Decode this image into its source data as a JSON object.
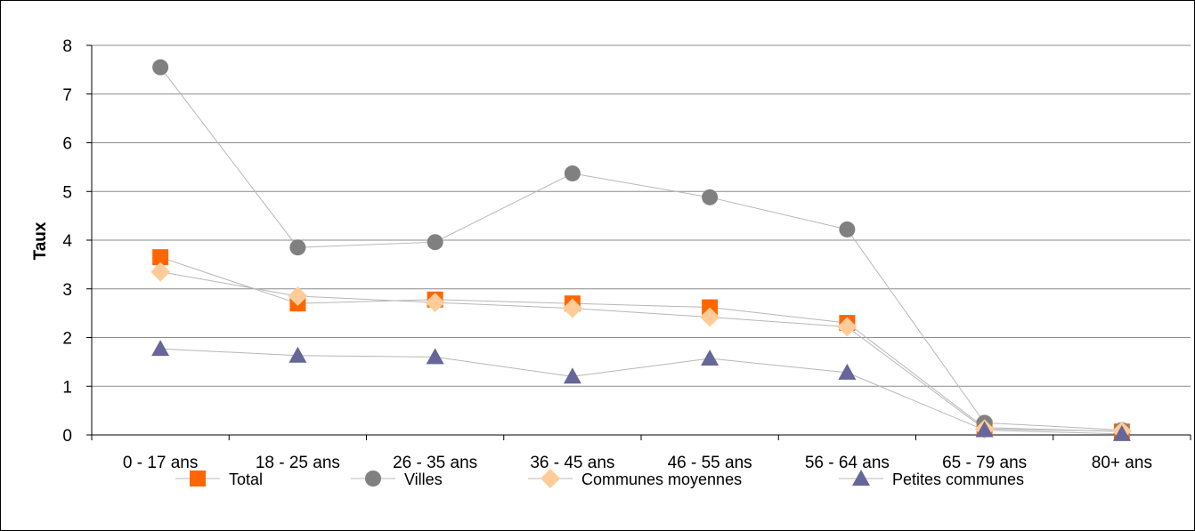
{
  "chart_data": {
    "type": "line",
    "title": "",
    "xlabel": "",
    "ylabel": "Taux",
    "ylim": [
      0,
      8
    ],
    "yticks": [
      0,
      1,
      2,
      3,
      4,
      5,
      6,
      7,
      8
    ],
    "grid": "horizontal",
    "legend_position": "bottom",
    "categories": [
      "0 - 17 ans",
      "18 - 25 ans",
      "26 - 35 ans",
      "36 - 45 ans",
      "46 - 55 ans",
      "56 - 64 ans",
      "65 - 79 ans",
      "80+ ans"
    ],
    "series": [
      {
        "name": "Total",
        "marker": "square",
        "color": "#FF6600",
        "line_color": "#B7B7B7",
        "values": [
          3.65,
          2.7,
          2.78,
          2.7,
          2.62,
          2.3,
          0.15,
          0.07
        ]
      },
      {
        "name": "Villes",
        "marker": "circle",
        "color": "#808080",
        "line_color": "#B7B7B7",
        "values": [
          7.55,
          3.85,
          3.96,
          5.37,
          4.88,
          4.22,
          0.25,
          0.1
        ]
      },
      {
        "name": "Communes moyennes",
        "marker": "diamond",
        "color": "#FFCC99",
        "line_color": "#B7B7B7",
        "values": [
          3.35,
          2.85,
          2.72,
          2.6,
          2.42,
          2.22,
          0.12,
          0.08
        ]
      },
      {
        "name": "Petites communes",
        "marker": "triangle",
        "color": "#666699",
        "line_color": "#B7B7B7",
        "values": [
          1.77,
          1.63,
          1.6,
          1.2,
          1.57,
          1.28,
          0.1,
          0.02
        ]
      }
    ]
  }
}
